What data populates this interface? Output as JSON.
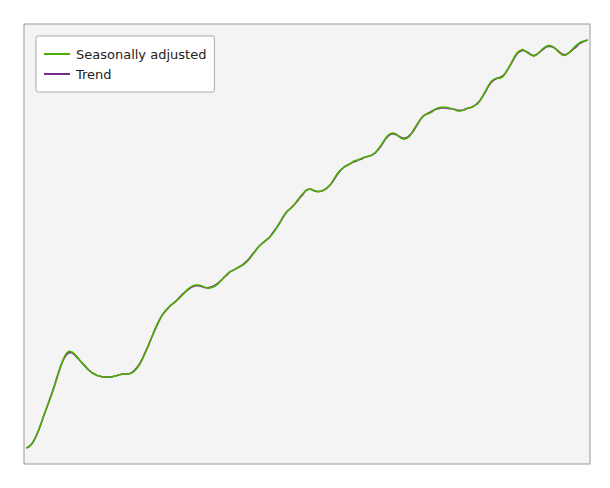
{
  "chart_data": {
    "type": "line",
    "categories": [
      null,
      null,
      null,
      null,
      null,
      null,
      null,
      null,
      null,
      null,
      null,
      null,
      null,
      null,
      null,
      null,
      null,
      null,
      null,
      null,
      null,
      null,
      null,
      null,
      null,
      null,
      null,
      null,
      null,
      null,
      null,
      null,
      null,
      null,
      null,
      null,
      null,
      null,
      null,
      null,
      null,
      null,
      null,
      null,
      null,
      null,
      null,
      null,
      null,
      null,
      null,
      null,
      null,
      null,
      null,
      null,
      null,
      null,
      null,
      null,
      null,
      null,
      null,
      null,
      null,
      null,
      null,
      null,
      null,
      null,
      null,
      null,
      null,
      null,
      null,
      null,
      null,
      null,
      null,
      null,
      null,
      null,
      null,
      null,
      null,
      null,
      null,
      null,
      null,
      null,
      null,
      null,
      null,
      null,
      null,
      null,
      null,
      null,
      null,
      null,
      null,
      null,
      null,
      null,
      null,
      null,
      null,
      null,
      null,
      null,
      null,
      null,
      null,
      null,
      null,
      null,
      null,
      null,
      null,
      null,
      null,
      null,
      null,
      null,
      null,
      null,
      null,
      null,
      null,
      null,
      null,
      null,
      null,
      null,
      null,
      null,
      null,
      null,
      null,
      null,
      null,
      null,
      null,
      null,
      null,
      null,
      null,
      null,
      null,
      null,
      null,
      null,
      null,
      null,
      null,
      null,
      null,
      null,
      null,
      null,
      null,
      null,
      null,
      null,
      null,
      null,
      null,
      null,
      null,
      null,
      null,
      null,
      null,
      null,
      null,
      null,
      null,
      null,
      null,
      null,
      null,
      null,
      null,
      null,
      null,
      null,
      null,
      null,
      null,
      null,
      null,
      null,
      null,
      null,
      null,
      null,
      null,
      null,
      null,
      null
    ],
    "series": [
      {
        "name": "Seasonally adjusted",
        "color": "#4daf00",
        "values": [
          0.0,
          0.02,
          0.06,
          0.13,
          0.21,
          0.31,
          0.42,
          0.52,
          0.62,
          0.72,
          0.83,
          0.95,
          1.07,
          1.17,
          1.24,
          1.27,
          1.26,
          1.23,
          1.19,
          1.14,
          1.1,
          1.06,
          1.02,
          0.99,
          0.97,
          0.95,
          0.94,
          0.93,
          0.93,
          0.93,
          0.93,
          0.94,
          0.95,
          0.96,
          0.97,
          0.97,
          0.97,
          0.98,
          1.0,
          1.04,
          1.09,
          1.16,
          1.24,
          1.33,
          1.42,
          1.51,
          1.6,
          1.68,
          1.74,
          1.79,
          1.83,
          1.87,
          1.9,
          1.93,
          1.96,
          2.0,
          2.04,
          2.08,
          2.11,
          2.13,
          2.14,
          2.14,
          2.13,
          2.11,
          2.1,
          2.1,
          2.11,
          2.13,
          2.16,
          2.2,
          2.24,
          2.28,
          2.31,
          2.33,
          2.35,
          2.37,
          2.39,
          2.41,
          2.44,
          2.48,
          2.53,
          2.58,
          2.63,
          2.67,
          2.7,
          2.73,
          2.76,
          2.8,
          2.85,
          2.91,
          2.97,
          3.04,
          3.09,
          3.13,
          3.16,
          3.2,
          3.25,
          3.3,
          3.34,
          3.38,
          3.4,
          3.4,
          3.38,
          3.37,
          3.37,
          3.38,
          3.4,
          3.43,
          3.47,
          3.53,
          3.59,
          3.64,
          3.67,
          3.7,
          3.72,
          3.74,
          3.77,
          3.78,
          3.79,
          3.81,
          3.82,
          3.83,
          3.84,
          3.86,
          3.89,
          3.94,
          3.99,
          4.05,
          4.1,
          4.13,
          4.14,
          4.13,
          4.1,
          4.07,
          4.06,
          4.07,
          4.1,
          4.16,
          4.22,
          4.28,
          4.33,
          4.37,
          4.39,
          4.4,
          4.42,
          4.45,
          4.47,
          4.48,
          4.48,
          4.48,
          4.47,
          4.46,
          4.45,
          4.43,
          4.43,
          4.44,
          4.46,
          4.47,
          4.48,
          4.5,
          4.52,
          4.57,
          4.63,
          4.7,
          4.77,
          4.82,
          4.85,
          4.86,
          4.86,
          4.88,
          4.93,
          4.99,
          5.06,
          5.13,
          5.19,
          5.22,
          5.24,
          5.22,
          5.19,
          5.17,
          5.15,
          5.17,
          5.2,
          5.24,
          5.27,
          5.29,
          5.29,
          5.27,
          5.24,
          5.2,
          5.17,
          5.16,
          5.18,
          5.21,
          5.25,
          5.29,
          5.32,
          5.34,
          5.35,
          5.36
        ]
      },
      {
        "name": "Trend",
        "color": "#7b2d8b",
        "values": [
          0.0,
          0.02,
          0.06,
          0.13,
          0.21,
          0.31,
          0.42,
          0.52,
          0.62,
          0.73,
          0.84,
          0.96,
          1.07,
          1.16,
          1.22,
          1.25,
          1.25,
          1.22,
          1.18,
          1.14,
          1.1,
          1.06,
          1.02,
          0.99,
          0.97,
          0.95,
          0.94,
          0.93,
          0.93,
          0.93,
          0.93,
          0.94,
          0.95,
          0.96,
          0.97,
          0.97,
          0.97,
          0.98,
          1.01,
          1.05,
          1.1,
          1.17,
          1.25,
          1.33,
          1.42,
          1.51,
          1.59,
          1.67,
          1.74,
          1.79,
          1.83,
          1.87,
          1.9,
          1.93,
          1.97,
          2.01,
          2.04,
          2.07,
          2.1,
          2.12,
          2.13,
          2.13,
          2.12,
          2.11,
          2.1,
          2.11,
          2.12,
          2.14,
          2.17,
          2.2,
          2.24,
          2.27,
          2.31,
          2.33,
          2.35,
          2.37,
          2.39,
          2.42,
          2.45,
          2.49,
          2.54,
          2.58,
          2.63,
          2.67,
          2.7,
          2.73,
          2.76,
          2.81,
          2.86,
          2.91,
          2.97,
          3.03,
          3.09,
          3.13,
          3.16,
          3.2,
          3.24,
          3.29,
          3.33,
          3.38,
          3.4,
          3.4,
          3.38,
          3.37,
          3.37,
          3.38,
          3.4,
          3.43,
          3.47,
          3.52,
          3.58,
          3.63,
          3.67,
          3.7,
          3.72,
          3.74,
          3.76,
          3.77,
          3.79,
          3.8,
          3.82,
          3.83,
          3.84,
          3.86,
          3.89,
          3.93,
          3.98,
          4.04,
          4.09,
          4.12,
          4.13,
          4.12,
          4.1,
          4.08,
          4.07,
          4.08,
          4.11,
          4.15,
          4.21,
          4.27,
          4.33,
          4.37,
          4.39,
          4.41,
          4.43,
          4.45,
          4.46,
          4.47,
          4.47,
          4.47,
          4.46,
          4.46,
          4.45,
          4.44,
          4.44,
          4.44,
          4.46,
          4.47,
          4.48,
          4.5,
          4.53,
          4.57,
          4.63,
          4.69,
          4.76,
          4.81,
          4.84,
          4.86,
          4.87,
          4.89,
          4.93,
          4.99,
          5.05,
          5.12,
          5.18,
          5.21,
          5.23,
          5.22,
          5.2,
          5.17,
          5.16,
          5.17,
          5.2,
          5.23,
          5.26,
          5.28,
          5.28,
          5.27,
          5.24,
          5.21,
          5.18,
          5.17,
          5.18,
          5.21,
          5.24,
          5.27,
          5.31,
          5.33,
          5.35,
          5.36
        ]
      }
    ],
    "ylim": [
      -0.2144,
      5.5744
    ],
    "tick_labels": false,
    "grid": false,
    "legend": "upper left"
  }
}
